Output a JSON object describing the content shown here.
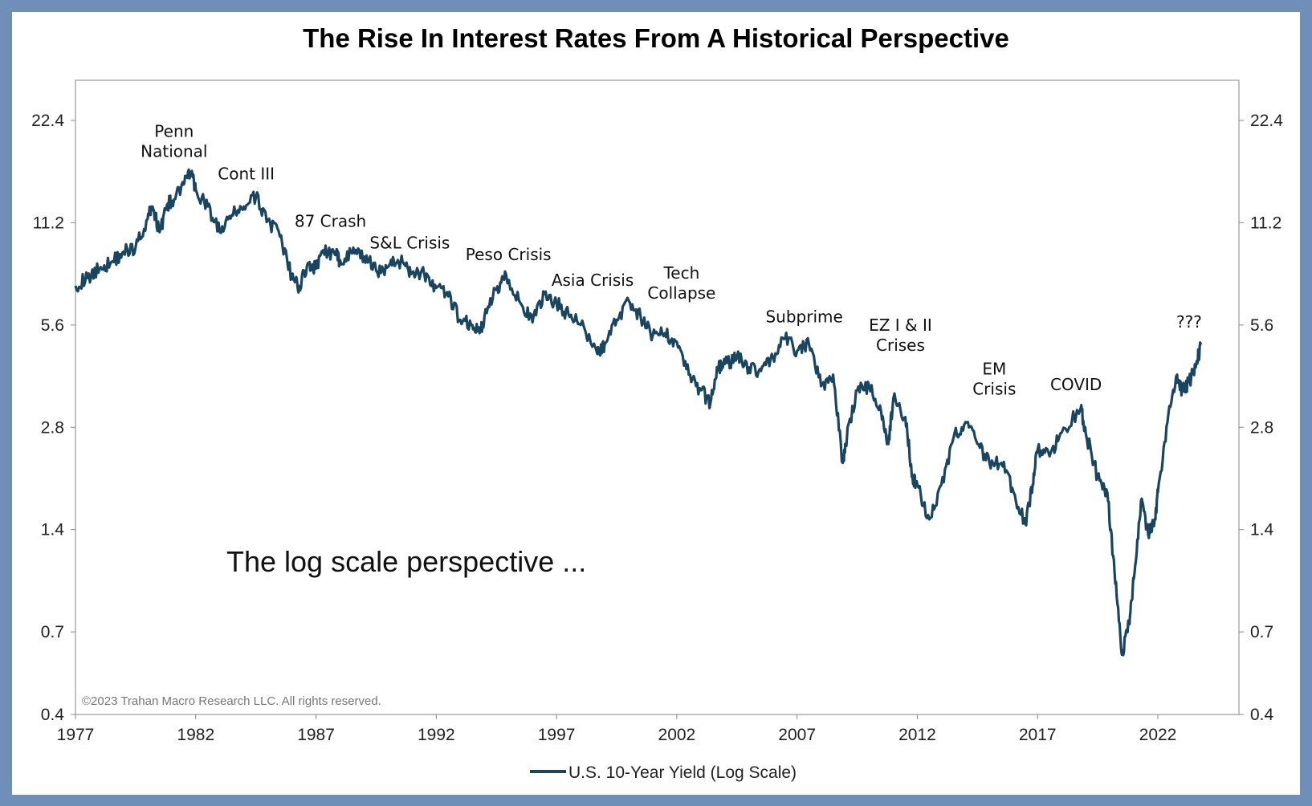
{
  "chart_data": {
    "type": "line",
    "title": "The Rise In Interest Rates From A Historical Perspective",
    "xlabel": "",
    "ylabel": "",
    "y_scale": "log",
    "ylim": [
      0.4,
      35
    ],
    "xlim": [
      1977,
      2025.5
    ],
    "y_ticks": [
      22.4,
      11.2,
      5.6,
      2.8,
      1.4,
      0.7,
      0.4
    ],
    "y_tick_labels": [
      "22.4",
      "11.2",
      "5.6",
      "2.8",
      "1.4",
      "0.7",
      "0.4"
    ],
    "x_ticks": [
      1977,
      1982,
      1987,
      1992,
      1997,
      2002,
      2007,
      2012,
      2017,
      2022
    ],
    "x_tick_labels": [
      "1977",
      "1982",
      "1987",
      "1992",
      "1997",
      "2002",
      "2007",
      "2012",
      "2017",
      "2022"
    ],
    "grid": false,
    "legend_position": "bottom-center",
    "series": [
      {
        "name": "U.S. 10-Year Yield (Log Scale)",
        "color": "#1a4560",
        "x": [
          1977.0,
          1977.5,
          1978.0,
          1978.5,
          1979.0,
          1979.5,
          1980.0,
          1980.2,
          1980.5,
          1980.8,
          1981.0,
          1981.5,
          1981.8,
          1982.0,
          1982.5,
          1983.0,
          1983.5,
          1984.0,
          1984.5,
          1985.0,
          1985.5,
          1986.0,
          1986.3,
          1986.7,
          1987.0,
          1987.3,
          1987.8,
          1988.0,
          1988.5,
          1989.0,
          1989.5,
          1990.0,
          1990.4,
          1990.8,
          1991.0,
          1991.5,
          1992.0,
          1992.5,
          1993.0,
          1993.5,
          1993.8,
          1994.0,
          1994.5,
          1994.9,
          1995.5,
          1996.0,
          1996.5,
          1997.0,
          1997.5,
          1998.0,
          1998.7,
          1999.0,
          1999.5,
          2000.0,
          2000.5,
          2001.0,
          2001.5,
          2002.0,
          2002.5,
          2003.0,
          2003.4,
          2003.7,
          2004.0,
          2004.5,
          2005.0,
          2005.5,
          2006.0,
          2006.5,
          2007.0,
          2007.5,
          2008.0,
          2008.5,
          2008.9,
          2009.0,
          2009.5,
          2010.0,
          2010.5,
          2010.8,
          2011.0,
          2011.5,
          2011.8,
          2012.0,
          2012.5,
          2013.0,
          2013.5,
          2014.0,
          2014.5,
          2015.0,
          2015.5,
          2016.0,
          2016.5,
          2016.8,
          2017.0,
          2017.5,
          2018.0,
          2018.8,
          2019.0,
          2019.5,
          2019.9,
          2020.2,
          2020.5,
          2020.8,
          2021.0,
          2021.3,
          2021.6,
          2021.9,
          2022.0,
          2022.4,
          2022.8,
          2023.0,
          2023.3,
          2023.6,
          2023.8
        ],
        "values": [
          7.3,
          7.7,
          8.2,
          8.6,
          9.2,
          9.5,
          11.5,
          12.5,
          10.5,
          12.6,
          13.0,
          14.5,
          15.8,
          14.0,
          12.5,
          10.5,
          11.8,
          12.5,
          13.3,
          11.4,
          10.2,
          7.7,
          7.3,
          8.5,
          8.2,
          9.3,
          9.0,
          8.7,
          9.1,
          8.9,
          8.1,
          8.3,
          8.7,
          8.3,
          8.0,
          7.9,
          7.2,
          6.8,
          5.8,
          5.6,
          5.3,
          5.9,
          7.1,
          7.9,
          6.5,
          5.7,
          6.9,
          6.5,
          6.0,
          5.6,
          4.6,
          4.9,
          5.8,
          6.6,
          5.9,
          5.2,
          5.3,
          5.0,
          4.0,
          3.6,
          3.3,
          4.2,
          4.3,
          4.5,
          4.2,
          4.1,
          4.5,
          5.1,
          4.7,
          4.9,
          3.7,
          4.0,
          2.2,
          2.5,
          3.6,
          3.7,
          3.1,
          2.5,
          3.4,
          3.0,
          2.0,
          1.9,
          1.5,
          1.9,
          2.6,
          2.9,
          2.5,
          2.2,
          2.2,
          1.8,
          1.45,
          1.9,
          2.4,
          2.3,
          2.7,
          3.2,
          2.7,
          2.0,
          1.8,
          1.05,
          0.6,
          0.75,
          1.0,
          1.7,
          1.35,
          1.5,
          1.8,
          2.9,
          4.0,
          3.6,
          3.8,
          4.3,
          4.9
        ]
      }
    ],
    "annotations": [
      {
        "lines": [
          "Penn",
          "National"
        ],
        "x": 1981.1,
        "y": 17.5
      },
      {
        "lines": [
          "Cont III"
        ],
        "x": 1984.1,
        "y": 15.0
      },
      {
        "lines": [
          "87 Crash"
        ],
        "x": 1987.6,
        "y": 10.9
      },
      {
        "lines": [
          "S&L Crisis"
        ],
        "x": 1990.9,
        "y": 9.4
      },
      {
        "lines": [
          "Peso Crisis"
        ],
        "x": 1995.0,
        "y": 8.7
      },
      {
        "lines": [
          "Asia Crisis"
        ],
        "x": 1998.5,
        "y": 7.3
      },
      {
        "lines": [
          "Tech",
          "Collapse"
        ],
        "x": 2002.2,
        "y": 6.7
      },
      {
        "lines": [
          "Subprime"
        ],
        "x": 2007.3,
        "y": 5.7
      },
      {
        "lines": [
          "EZ I & II",
          "Crises"
        ],
        "x": 2011.3,
        "y": 4.7
      },
      {
        "lines": [
          "EM",
          "Crisis"
        ],
        "x": 2015.2,
        "y": 3.5
      },
      {
        "lines": [
          "COVID"
        ],
        "x": 2018.6,
        "y": 3.6
      },
      {
        "lines": [
          "???"
        ],
        "x": 2023.3,
        "y": 5.5
      }
    ]
  },
  "note_text": "The log scale perspective ...",
  "copyright": "©2023 Trahan Macro Research LLC. All rights reserved."
}
